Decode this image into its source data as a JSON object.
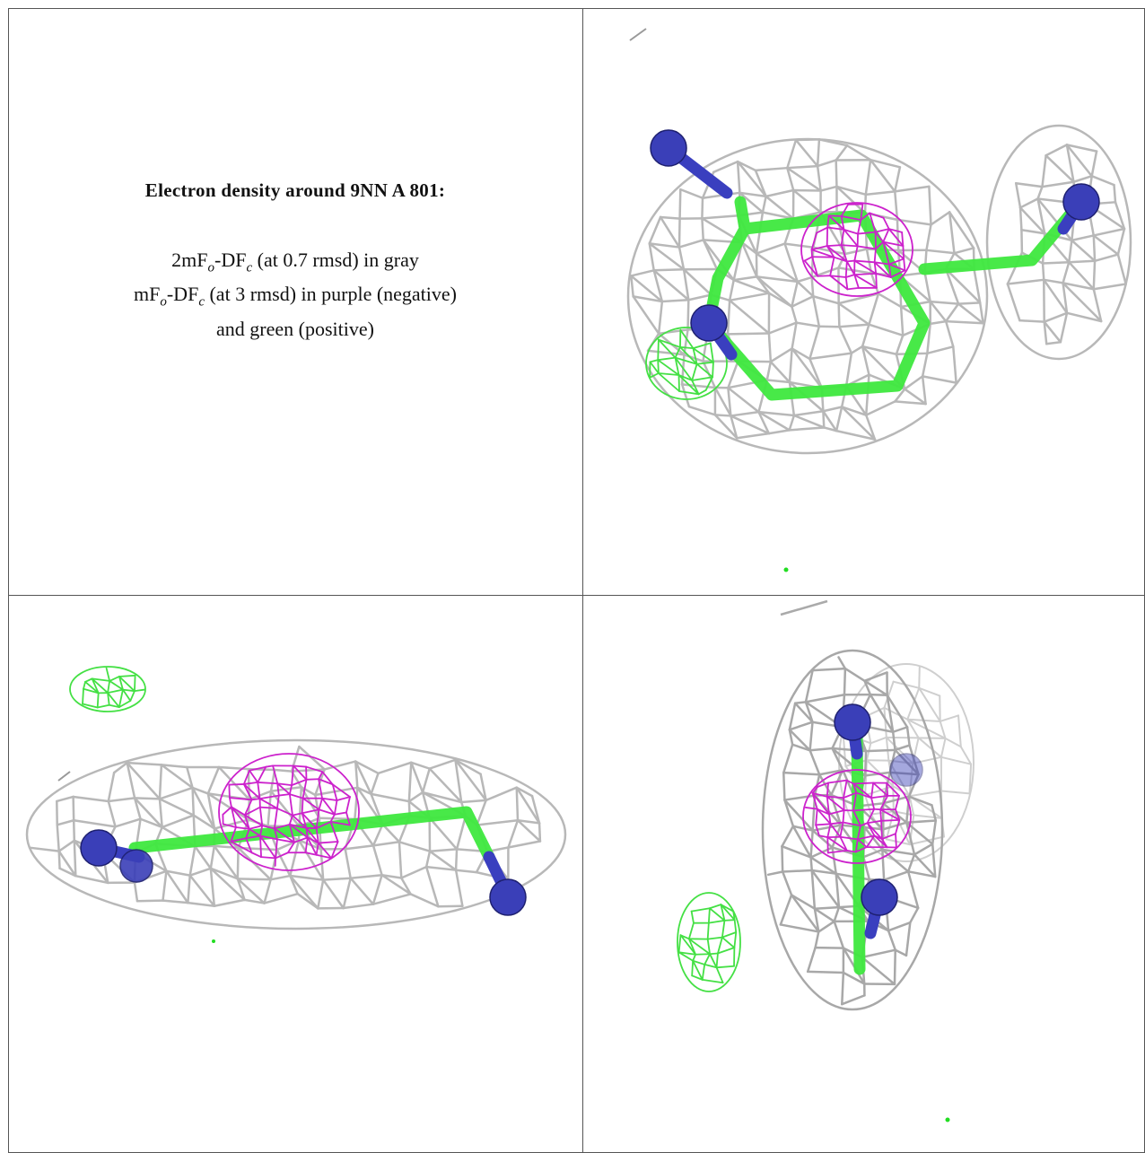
{
  "caption": {
    "title": "Electron density around 9NN A 801:",
    "lines": [
      [
        "2mF",
        "o",
        "-DF",
        "c",
        " (at 0.7 rmsd) in gray"
      ],
      [
        "mF",
        "o",
        "-DF",
        "c",
        " (at 3 rmsd) in purple (negative)"
      ],
      [
        "and green (positive)"
      ]
    ]
  }
}
